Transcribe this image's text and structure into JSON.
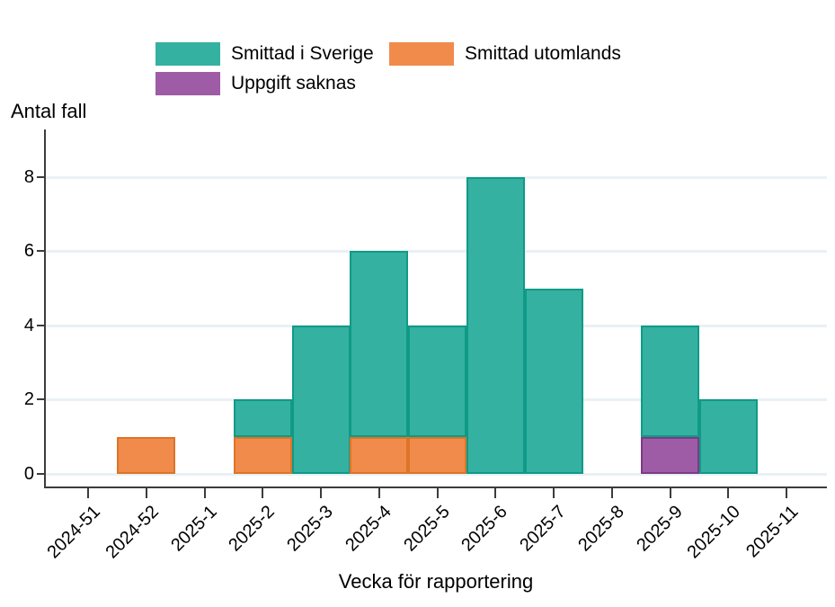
{
  "y_axis_title": "Antal fall",
  "x_axis_title": "Vecka för rapportering",
  "legend": {
    "items": [
      {
        "label": "Smittad i Sverige",
        "color": "#35B1A1"
      },
      {
        "label": "Smittad utomlands",
        "color": "#F08B4C"
      },
      {
        "label": "Uppgift saknas",
        "color": "#9D5CA5"
      }
    ]
  },
  "chart_data": {
    "type": "bar",
    "stacked": true,
    "title": "",
    "xlabel": "Vecka för rapportering",
    "ylabel": "Antal fall",
    "categories": [
      "2024-51",
      "2024-52",
      "2025-1",
      "2025-2",
      "2025-3",
      "2025-4",
      "2025-5",
      "2025-6",
      "2025-7",
      "2025-8",
      "2025-9",
      "2025-10",
      "2025-11"
    ],
    "series": [
      {
        "name": "Smittad i Sverige",
        "color": "#35B1A1",
        "border_color": "#0F9A88",
        "values": [
          0,
          0,
          0,
          1,
          4,
          5,
          3,
          8,
          5,
          0,
          3,
          2,
          0
        ]
      },
      {
        "name": "Smittad utomlands",
        "color": "#F08B4C",
        "border_color": "#DC7527",
        "values": [
          0,
          1,
          0,
          1,
          0,
          1,
          1,
          0,
          0,
          0,
          0,
          0,
          0
        ]
      },
      {
        "name": "Uppgift saknas",
        "color": "#9D5CA5",
        "border_color": "#7B3C85",
        "values": [
          0,
          0,
          0,
          0,
          0,
          0,
          0,
          0,
          0,
          0,
          1,
          0,
          0
        ]
      }
    ],
    "stack_order_bottom_to_top": [
      1,
      2,
      0
    ],
    "totals_per_category": [
      0,
      1,
      0,
      2,
      4,
      6,
      4,
      8,
      5,
      0,
      4,
      2,
      0
    ],
    "y_ticks": [
      0,
      2,
      4,
      6,
      8
    ],
    "ylim": [
      0,
      9.2
    ],
    "grid": "horizontal",
    "grid_color": "#E9F1F5",
    "axis_color": "#3C3C3C",
    "x_tick_label_rotation_deg": 45,
    "legend_position": "top"
  }
}
